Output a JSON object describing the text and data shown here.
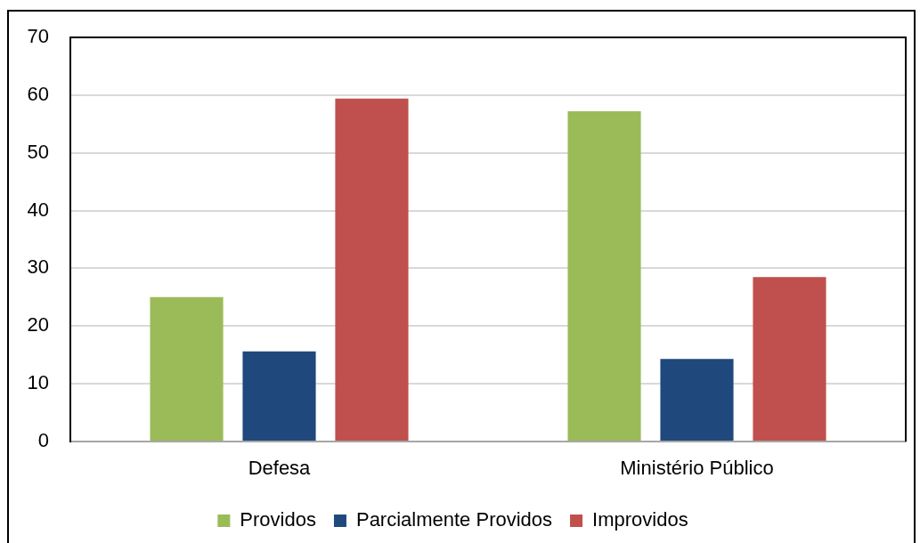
{
  "chart_data": {
    "type": "bar",
    "categories": [
      "Defesa",
      "Ministério Público"
    ],
    "series": [
      {
        "name": "Providos",
        "color": "#9bbb59",
        "values": [
          25.0,
          57.2
        ]
      },
      {
        "name": "Parcialmente Providos",
        "color": "#1f497d",
        "values": [
          15.6,
          14.3
        ]
      },
      {
        "name": "Improvidos",
        "color": "#c0504d",
        "values": [
          59.4,
          28.5
        ]
      }
    ],
    "ylim": [
      0,
      70
    ],
    "yticks": [
      0,
      10,
      20,
      30,
      40,
      50,
      60,
      70
    ],
    "grid": "y",
    "legend": "bottom"
  }
}
